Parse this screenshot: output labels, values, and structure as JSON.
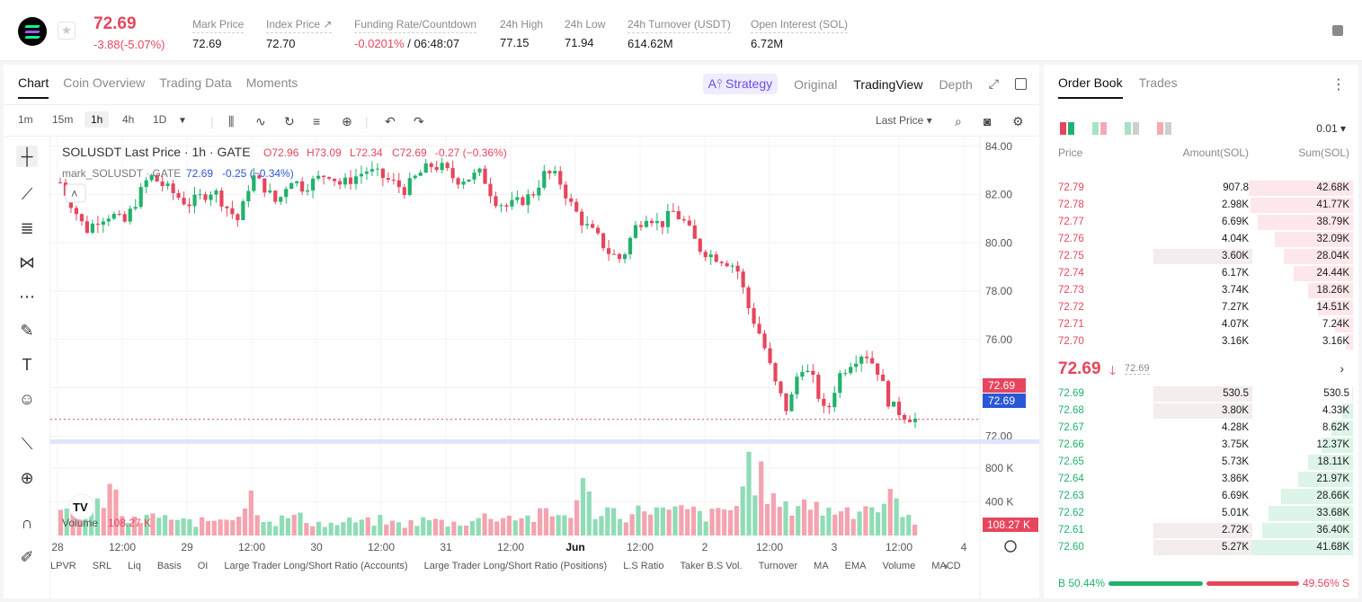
{
  "ticker": {
    "price": "72.69",
    "change": "-3.88(-5.07%)",
    "stats": [
      {
        "label": "Mark Price",
        "value": "72.69"
      },
      {
        "label": "Index Price",
        "value": "72.70"
      },
      {
        "label": "Funding Rate/Countdown",
        "value_neg": "-0.0201%",
        "value": " / 06:48:07"
      },
      {
        "label": "24h High",
        "value": "77.15"
      },
      {
        "label": "24h Low",
        "value": "71.94"
      },
      {
        "label": "24h Turnover (USDT)",
        "value": "614.62M"
      },
      {
        "label": "Open Interest (SOL)",
        "value": "6.72M"
      }
    ],
    "index_arrow": "↗"
  },
  "chart_tabs": [
    "Chart",
    "Coin Overview",
    "Trading Data",
    "Moments"
  ],
  "view_tabs": {
    "strategy": "A⫯ Strategy",
    "original": "Original",
    "tradingview": "TradingView",
    "depth": "Depth"
  },
  "toolbar": {
    "timeframes": [
      "1m",
      "15m",
      "1h",
      "4h",
      "1D"
    ],
    "active_timeframe": "1h",
    "last_price_label": "Last Price"
  },
  "legend": {
    "line1_name": "SOLUSDT Last Price · 1h · GATE",
    "o": "O72.96",
    "h": "H73.09",
    "l": "L72.34",
    "c": "C72.69",
    "chg": "-0.27 (−0.36%)",
    "line2_name": "mark_SOLUSDT · GATE",
    "mark": "72.69",
    "mark_chg": "-0.25 (−0.34%)",
    "volume_label": "Volume",
    "volume_value": "108.27 K"
  },
  "chart_data": {
    "type": "candlestick",
    "y_ticks": [
      "84.00",
      "82.00",
      "80.00",
      "78.00",
      "76.00",
      "74.00",
      "72.00"
    ],
    "ylim": [
      71.9,
      84.4
    ],
    "vol_ticks": [
      "800 K",
      "400 K"
    ],
    "x_ticks": [
      "28",
      "12:00",
      "29",
      "12:00",
      "30",
      "12:00",
      "31",
      "12:00",
      "Jun",
      "12:00",
      "2",
      "12:00",
      "3",
      "12:00",
      "4"
    ],
    "last_price_tag": "72.69",
    "mark_price_tag": "72.69",
    "volume_tag": "108.27 K",
    "close_path": [
      82.5,
      81.5,
      80.5,
      81.0,
      81.2,
      80.8,
      81.8,
      82.8,
      82.4,
      82.0,
      81.6,
      81.9,
      82.2,
      81.5,
      80.9,
      82.8,
      82.3,
      81.6,
      82.7,
      82.3,
      82.6,
      82.9,
      82.4,
      82.7,
      83.0,
      82.8,
      82.5,
      82.2,
      82.8,
      83.2,
      83.1,
      82.6,
      82.7,
      82.9,
      81.8,
      81.5,
      81.7,
      82.0,
      82.9,
      82.7,
      81.6,
      80.8,
      80.3,
      79.6,
      79.3,
      80.6,
      81.2,
      80.7,
      81.3,
      80.8,
      79.8,
      79.5,
      79.3,
      79.0,
      77.2,
      76.0,
      74.2,
      73.0,
      75.0,
      74.3,
      72.8,
      74.5,
      75.1,
      75.5,
      74.8,
      73.3,
      72.9,
      72.69
    ],
    "volumes": [
      250,
      300,
      420,
      350,
      640,
      200,
      180,
      230,
      280,
      160,
      190,
      170,
      210,
      260,
      300,
      530,
      230,
      180,
      260,
      220,
      170,
      140,
      160,
      190,
      170,
      200,
      160,
      150,
      180,
      210,
      170,
      160,
      190,
      230,
      270,
      240,
      260,
      220,
      290,
      250,
      310,
      620,
      290,
      340,
      280,
      260,
      410,
      310,
      290,
      340,
      280,
      260,
      310,
      380,
      940,
      700,
      430,
      320,
      490,
      390,
      310,
      360,
      330,
      410,
      360,
      470,
      380,
      108
    ]
  },
  "indicators": [
    "LPVR",
    "SRL",
    "Liq",
    "Basis",
    "OI",
    "Large Trader Long/Short Ratio (Accounts)",
    "Large Trader Long/Short Ratio (Positions)",
    "L.S Ratio",
    "Taker B.S Vol.",
    "Turnover",
    "MA",
    "EMA",
    "Volume",
    "MACD"
  ],
  "orderbook": {
    "tabs": [
      "Order Book",
      "Trades"
    ],
    "precision": "0.01",
    "headers": {
      "price": "Price",
      "amount": "Amount(SOL)",
      "sum": "Sum(SOL)"
    },
    "asks": [
      {
        "price": "72.79",
        "amount": "907.8",
        "sum": "42.68K",
        "depth": 1.0,
        "amount_frac": 0.0
      },
      {
        "price": "72.78",
        "amount": "2.98K",
        "sum": "41.77K",
        "depth": 0.98,
        "amount_frac": 0.0
      },
      {
        "price": "72.77",
        "amount": "6.69K",
        "sum": "38.79K",
        "depth": 0.91,
        "amount_frac": 0.0
      },
      {
        "price": "72.76",
        "amount": "4.04K",
        "sum": "32.09K",
        "depth": 0.75,
        "amount_frac": 0.0
      },
      {
        "price": "72.75",
        "amount": "3.60K",
        "sum": "28.04K",
        "depth": 0.66,
        "amount_frac": 1.0
      },
      {
        "price": "72.74",
        "amount": "6.17K",
        "sum": "24.44K",
        "depth": 0.57,
        "amount_frac": 0.0
      },
      {
        "price": "72.73",
        "amount": "3.74K",
        "sum": "18.26K",
        "depth": 0.43,
        "amount_frac": 0.0
      },
      {
        "price": "72.72",
        "amount": "7.27K",
        "sum": "14.51K",
        "depth": 0.34,
        "amount_frac": 0.0
      },
      {
        "price": "72.71",
        "amount": "4.07K",
        "sum": "7.24K",
        "depth": 0.17,
        "amount_frac": 0.0
      },
      {
        "price": "72.70",
        "amount": "3.16K",
        "sum": "3.16K",
        "depth": 0.07,
        "amount_frac": 0.0
      }
    ],
    "mid_price": "72.69",
    "mid_arrow": "🡓",
    "mid_mark": "72.69",
    "bids": [
      {
        "price": "72.69",
        "amount": "530.5",
        "sum": "530.5",
        "depth": 0.01,
        "amount_frac": 1.0
      },
      {
        "price": "72.68",
        "amount": "3.80K",
        "sum": "4.33K",
        "depth": 0.1,
        "amount_frac": 1.0
      },
      {
        "price": "72.67",
        "amount": "4.28K",
        "sum": "8.62K",
        "depth": 0.21,
        "amount_frac": 0.0
      },
      {
        "price": "72.66",
        "amount": "3.75K",
        "sum": "12.37K",
        "depth": 0.3,
        "amount_frac": 0.0
      },
      {
        "price": "72.65",
        "amount": "5.73K",
        "sum": "18.11K",
        "depth": 0.43,
        "amount_frac": 0.0
      },
      {
        "price": "72.64",
        "amount": "3.86K",
        "sum": "21.97K",
        "depth": 0.53,
        "amount_frac": 0.0
      },
      {
        "price": "72.63",
        "amount": "6.69K",
        "sum": "28.66K",
        "depth": 0.69,
        "amount_frac": 0.0
      },
      {
        "price": "72.62",
        "amount": "5.01K",
        "sum": "33.68K",
        "depth": 0.81,
        "amount_frac": 0.0
      },
      {
        "price": "72.61",
        "amount": "2.72K",
        "sum": "36.40K",
        "depth": 0.87,
        "amount_frac": 1.0
      },
      {
        "price": "72.60",
        "amount": "5.27K",
        "sum": "41.68K",
        "depth": 1.0,
        "amount_frac": 1.0
      }
    ],
    "buy_label": "B 50.44%",
    "sell_label": "49.56% S",
    "buy_ratio": 0.5044
  },
  "colors": {
    "up": "#20b26c",
    "down": "#e6465d",
    "mark_blue": "#2a57d6",
    "strategy": "#6b4ce6"
  }
}
